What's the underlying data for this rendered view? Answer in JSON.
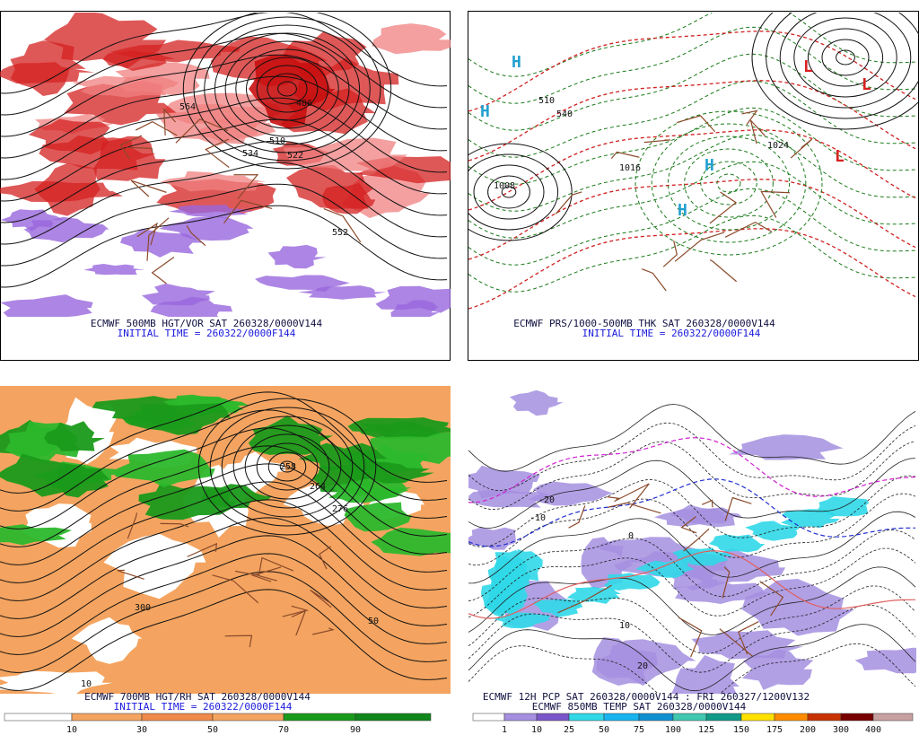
{
  "panels": [
    {
      "caption": "ECMWF 500MB HGT/VOR SAT 260328/0000V144",
      "initial": "INITIAL TIME = 260322/0000F144",
      "labels": [
        "486",
        "510",
        "522",
        "534",
        "552",
        "564"
      ]
    },
    {
      "caption": "ECMWF PRS/1000-500MB THK SAT 260328/0000V144",
      "initial": "INITIAL TIME = 260322/0000F144",
      "labels": [
        "H",
        "H",
        "H",
        "H",
        "L",
        "L",
        "L",
        "1008",
        "1024",
        "1016",
        "510",
        "540"
      ]
    },
    {
      "caption": "ECMWF 700MB HGT/RH SAT 260328/0000V144",
      "initial": "INITIAL TIME = 260322/0000F144",
      "labels": [
        "258",
        "264",
        "276",
        "300",
        "50",
        "10"
      ],
      "colorbar": [
        "10",
        "30",
        "50",
        "70",
        "90"
      ]
    },
    {
      "caption": "ECMWF 12H PCP SAT 260328/0000V144 : FRI 260327/1200V132",
      "initial": "ECMWF 850MB TEMP SAT 260328/0000V144",
      "labels": [
        "-10",
        "-20",
        "0",
        "10",
        "20"
      ],
      "colorbar": [
        "1",
        "10",
        "25",
        "50",
        "75",
        "100",
        "125",
        "150",
        "175",
        "200",
        "300",
        "400"
      ]
    }
  ]
}
